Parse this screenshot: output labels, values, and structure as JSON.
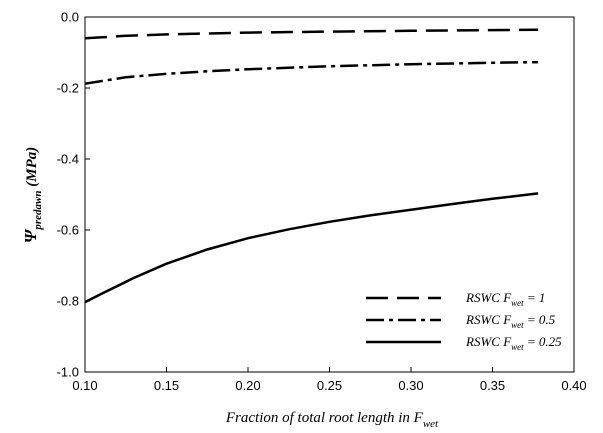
{
  "chart_data": {
    "type": "line",
    "xlabel": {
      "main": "Fraction of total root length in F",
      "sub": "wet"
    },
    "ylabel": {
      "symbol": "Ψ",
      "sub": "predawn",
      "unit": " (MPa)"
    },
    "xlim": [
      0.1,
      0.4
    ],
    "ylim": [
      -1.0,
      0.0
    ],
    "xticks": [
      "0.10",
      "0.15",
      "0.20",
      "0.25",
      "0.30",
      "0.35",
      "0.40"
    ],
    "yticks": [
      "0.0",
      "-0.2",
      "-0.4",
      "-0.6",
      "-0.8",
      "-1.0"
    ],
    "grid": false,
    "legend_position": "bottom-right",
    "series": [
      {
        "name": "RSWC F wet = 1",
        "label_parts": [
          "RSWC F",
          "wet",
          " = 1"
        ],
        "style": "dashed",
        "x": [
          0.1,
          0.125,
          0.15,
          0.2,
          0.25,
          0.3,
          0.35,
          0.378
        ],
        "y": [
          -0.06,
          -0.053,
          -0.049,
          -0.044,
          -0.041,
          -0.039,
          -0.037,
          -0.036
        ]
      },
      {
        "name": "RSWC F wet = 0.5",
        "label_parts": [
          "RSWC F",
          "wet",
          " = 0.5"
        ],
        "style": "dashdot",
        "x": [
          0.1,
          0.125,
          0.15,
          0.175,
          0.2,
          0.25,
          0.3,
          0.35,
          0.378
        ],
        "y": [
          -0.188,
          -0.17,
          -0.16,
          -0.153,
          -0.147,
          -0.139,
          -0.133,
          -0.129,
          -0.127
        ]
      },
      {
        "name": "RSWC F wet = 0.25",
        "label_parts": [
          "RSWC F",
          "wet",
          " = 0.25"
        ],
        "style": "solid",
        "x": [
          0.1,
          0.11,
          0.13,
          0.15,
          0.175,
          0.2,
          0.225,
          0.25,
          0.275,
          0.3,
          0.325,
          0.35,
          0.378
        ],
        "y": [
          -0.803,
          -0.78,
          -0.735,
          -0.695,
          -0.655,
          -0.623,
          -0.598,
          -0.577,
          -0.559,
          -0.543,
          -0.527,
          -0.512,
          -0.497
        ]
      }
    ]
  }
}
